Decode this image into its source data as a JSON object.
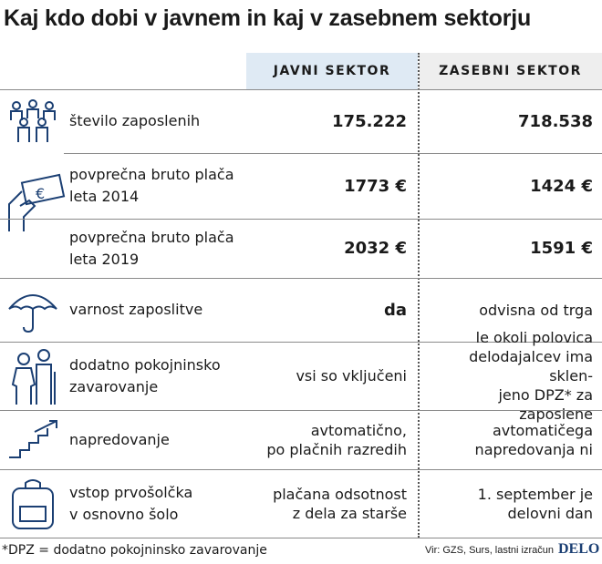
{
  "title": "Kaj kdo dobi v javnem in kaj v zasebnem sektorju",
  "columns": [
    "JAVNI SEKTOR",
    "ZASEBNI SEKTOR"
  ],
  "rows": [
    {
      "label": [
        "število zaposlenih"
      ],
      "javni": [
        "175.222"
      ],
      "zasebni": [
        "718.538"
      ]
    },
    {
      "label": [
        "povprečna bruto plača",
        "leta 2014"
      ],
      "javni": [
        "1773 €"
      ],
      "zasebni": [
        "1424 €"
      ]
    },
    {
      "label": [
        "povprečna bruto plača",
        "leta 2019"
      ],
      "javni": [
        "2032 €"
      ],
      "zasebni": [
        "1591 €"
      ]
    },
    {
      "label": [
        "varnost zaposlitve"
      ],
      "javni": [
        "da"
      ],
      "zasebni": [
        "odvisna od trga"
      ]
    },
    {
      "label": [
        "dodatno pokojninsko",
        "zavarovanje"
      ],
      "javni": [
        "vsi so vključeni"
      ],
      "zasebni": [
        "le okoli polovica",
        "delodajalcev ima sklen-",
        "jeno DPZ* za zaposlene"
      ]
    },
    {
      "label": [
        "napredovanje"
      ],
      "javni": [
        "avtomatično,",
        "po plačnih razredih"
      ],
      "zasebni": [
        "avtomatičega",
        "napredovanja ni"
      ]
    },
    {
      "label": [
        "vstop prvošolčka",
        "v osnovno šolo"
      ],
      "javni": [
        "plačana odsotnost",
        "z dela za starše"
      ],
      "zasebni": [
        "1. september je",
        "delovni dan"
      ]
    }
  ],
  "footnote": "*DPZ = dodatno pokojninsko zavarovanje",
  "source": "Vir: GZS, Surs, lastni izračun",
  "logo": "DELO"
}
